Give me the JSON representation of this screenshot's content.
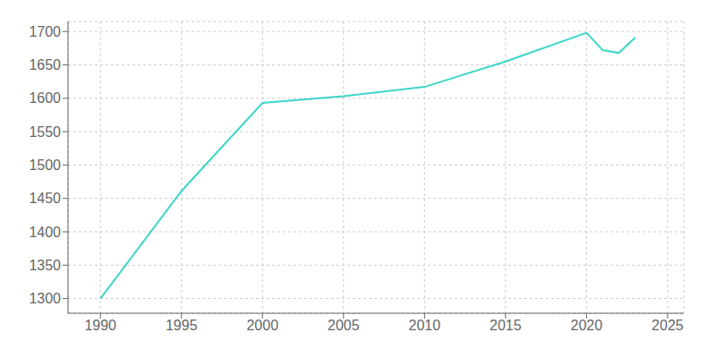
{
  "chart_data": {
    "type": "line",
    "x": [
      1990,
      1995,
      2000,
      2005,
      2010,
      2015,
      2020,
      2021,
      2022,
      2023
    ],
    "values": [
      1300,
      1461,
      1593,
      1603,
      1617,
      1655,
      1698,
      1672,
      1668,
      1691
    ],
    "color": "#3dd6c8",
    "xlim": [
      1988,
      2026
    ],
    "ylim": [
      1278,
      1715
    ],
    "xticks": [
      1990,
      1995,
      2000,
      2005,
      2010,
      2015,
      2020,
      2025
    ],
    "yticks": [
      1300,
      1350,
      1400,
      1450,
      1500,
      1550,
      1600,
      1650,
      1700
    ],
    "grid": true
  }
}
